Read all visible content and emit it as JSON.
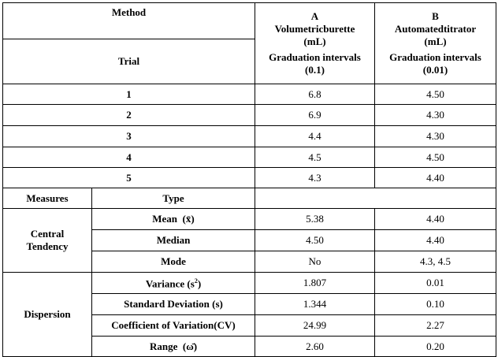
{
  "header": {
    "method_label": "Method",
    "trial_label": "Trial",
    "col_a": {
      "letter": "A",
      "name": "Volumetricburette",
      "unit": "(mL)",
      "grad_label": "Graduation intervals",
      "grad_value": "(0.1)"
    },
    "col_b": {
      "letter": "B",
      "name": "Automatedtitrator",
      "unit": "(mL)",
      "grad_label": "Graduation intervals",
      "grad_value": "(0.01)"
    }
  },
  "trials": [
    {
      "trial": "1",
      "a": "6.8",
      "b": "4.50"
    },
    {
      "trial": "2",
      "a": "6.9",
      "b": "4.30"
    },
    {
      "trial": "3",
      "a": "4.4",
      "b": "4.30"
    },
    {
      "trial": "4",
      "a": "4.5",
      "b": "4.50"
    },
    {
      "trial": "5",
      "a": "4.3",
      "b": "4.40"
    }
  ],
  "measures_header": {
    "measures": "Measures",
    "type": "Type"
  },
  "central": {
    "label_1": "Central",
    "label_2": "Tendency",
    "rows": [
      {
        "type": "Mean",
        "symbol": "(x̄)",
        "a": "5.38",
        "b": "4.40"
      },
      {
        "type": "Median",
        "symbol": "",
        "a": "4.50",
        "b": "4.40"
      },
      {
        "type": "Mode",
        "symbol": "",
        "a": "No",
        "b": "4.3, 4.5"
      }
    ]
  },
  "dispersion": {
    "label": "Dispersion",
    "rows": [
      {
        "type": "Variance (s",
        "sup": "2",
        "close": ")",
        "a": "1.807",
        "b": "0.01"
      },
      {
        "type": "Standard Deviation (s)",
        "a": "1.344",
        "b": "0.10"
      },
      {
        "type": "Coefficient of Variation(CV)",
        "a": "24.99",
        "b": "2.27"
      },
      {
        "type": "Range",
        "symbol": "(ω̄)",
        "a": "2.60",
        "b": "0.20"
      }
    ]
  }
}
